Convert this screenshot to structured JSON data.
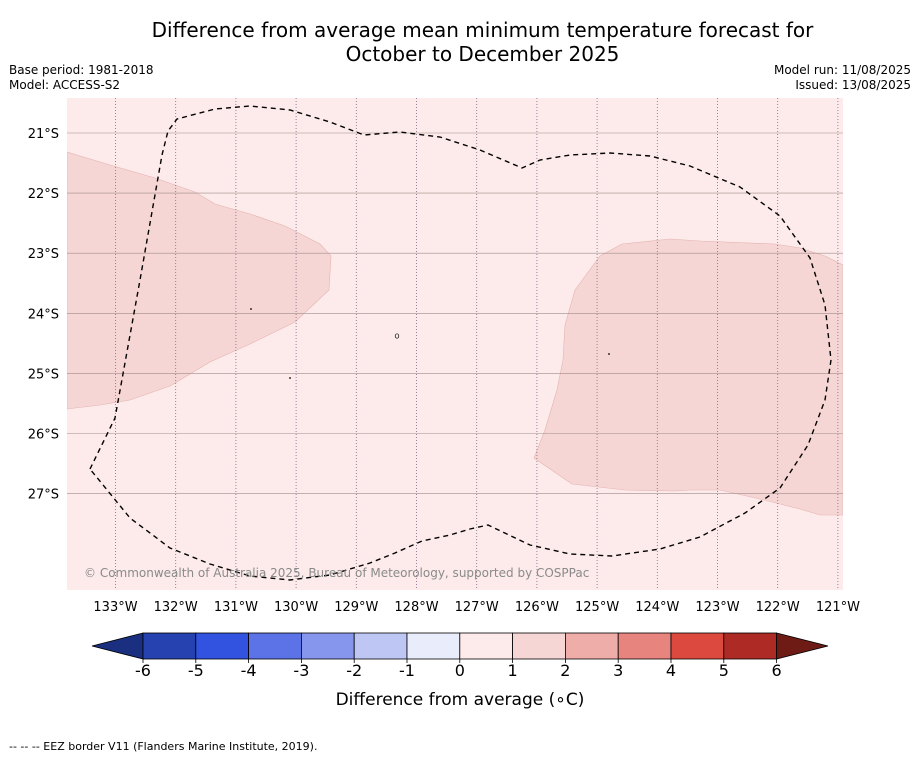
{
  "header": {
    "title_line1": "Difference from average mean minimum temperature forecast for",
    "title_line2": "October to December 2025",
    "base_period": "Base period: 1981-2018",
    "model": "Model: ACCESS-S2",
    "model_run": "Model run: 11/08/2025",
    "issued": "Issued: 13/08/2025"
  },
  "map": {
    "lat_labels": [
      "21°S",
      "22°S",
      "23°S",
      "24°S",
      "25°S",
      "26°S",
      "27°S"
    ],
    "lon_labels": [
      "133°W",
      "132°W",
      "131°W",
      "130°W",
      "129°W",
      "128°W",
      "127°W",
      "126°W",
      "125°W",
      "124°W",
      "123°W",
      "122°W",
      "121°W"
    ],
    "copyright": "© Commonwealth of Australia 2025, Bureau of Meteorology, supported by COSPPac",
    "background_category": "0 to 1",
    "anomaly_regions": [
      {
        "name": "western-region",
        "category": "1 to 2"
      },
      {
        "name": "eastern-region",
        "category": "1 to 2"
      }
    ]
  },
  "colorbar": {
    "tick_labels": [
      "-6",
      "-5",
      "-4",
      "-3",
      "-2",
      "-1",
      "0",
      "1",
      "2",
      "3",
      "4",
      "5",
      "6"
    ],
    "colors": [
      "#1a2f7f",
      "#2641b0",
      "#3153e0",
      "#5b73e6",
      "#8596ec",
      "#bec6f4",
      "#e9ecfb",
      "#fcebea",
      "#f6d6d5",
      "#eeada9",
      "#e8847e",
      "#dc4a3f",
      "#ae2a24",
      "#6e1a15"
    ],
    "label": "Difference from average (∘C)"
  },
  "footer": {
    "legend_text": "--  --  -- EEZ border V11 (Flanders Marine Institute, 2019)."
  }
}
